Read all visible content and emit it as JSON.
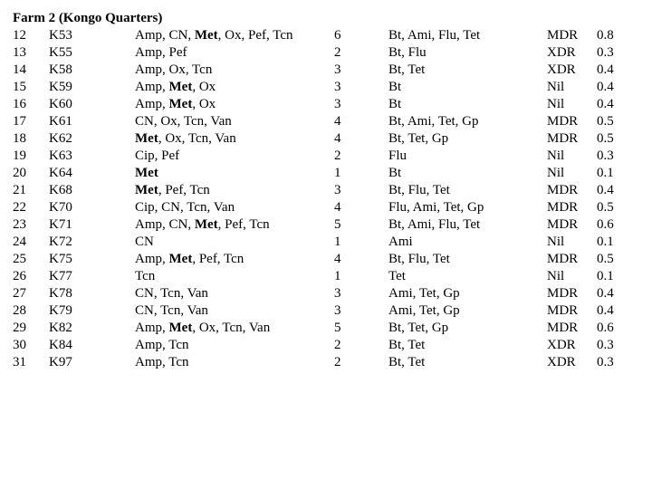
{
  "section_title": "Farm 2 (Kongo Quarters)",
  "rows": [
    {
      "n": "12",
      "code": "K53",
      "res_tokens": [
        "Amp, CN, ",
        [
          "b",
          "Met"
        ],
        ", Ox, Pef, Tcn"
      ],
      "count": "6",
      "sens": "Bt, Ami, Flu, Tet",
      "cat": "MDR",
      "idx": "0.8"
    },
    {
      "n": "13",
      "code": "K55",
      "res_tokens": [
        "Amp, Pef"
      ],
      "count": "2",
      "sens": "Bt, Flu",
      "cat": "XDR",
      "idx": "0.3"
    },
    {
      "n": "14",
      "code": "K58",
      "res_tokens": [
        "Amp, Ox, Tcn"
      ],
      "count": "3",
      "sens": "Bt, Tet",
      "cat": "XDR",
      "idx": "0.4"
    },
    {
      "n": "15",
      "code": "K59",
      "res_tokens": [
        "Amp, ",
        [
          "b",
          "Met"
        ],
        ", Ox"
      ],
      "count": "3",
      "sens": "Bt",
      "cat": "Nil",
      "idx": "0.4"
    },
    {
      "n": "16",
      "code": "K60",
      "res_tokens": [
        "Amp, ",
        [
          "b",
          "Met"
        ],
        ", Ox"
      ],
      "count": "3",
      "sens": "Bt",
      "cat": "Nil",
      "idx": "0.4"
    },
    {
      "n": "17",
      "code": "K61",
      "res_tokens": [
        "CN, Ox, Tcn, Van"
      ],
      "count": "4",
      "sens": "Bt, Ami, Tet, Gp",
      "cat": "MDR",
      "idx": "0.5"
    },
    {
      "n": "18",
      "code": "K62",
      "res_tokens": [
        [
          "b",
          "Met"
        ],
        ", Ox, Tcn, Van"
      ],
      "count": "4",
      "sens": "Bt, Tet, Gp",
      "cat": "MDR",
      "idx": "0.5"
    },
    {
      "n": "19",
      "code": "K63",
      "res_tokens": [
        "Cip, Pef"
      ],
      "count": "2",
      "sens": "Flu",
      "cat": "Nil",
      "idx": "0.3"
    },
    {
      "n": "20",
      "code": "K64",
      "res_tokens": [
        [
          "b",
          "Met"
        ]
      ],
      "count": "1",
      "sens": "Bt",
      "cat": "Nil",
      "idx": "0.1"
    },
    {
      "n": "21",
      "code": "K68",
      "res_tokens": [
        [
          "b",
          "Met"
        ],
        ", Pef, Tcn"
      ],
      "count": "3",
      "sens": "Bt, Flu, Tet",
      "cat": "MDR",
      "idx": "0.4"
    },
    {
      "n": "22",
      "code": "K70",
      "res_tokens": [
        "Cip, CN, Tcn, Van"
      ],
      "count": "4",
      "sens": "Flu, Ami, Tet, Gp",
      "cat": "MDR",
      "idx": "0.5"
    },
    {
      "n": "23",
      "code": "K71",
      "res_tokens": [
        "Amp, CN, ",
        [
          "b",
          "Met"
        ],
        ", Pef, Tcn"
      ],
      "count": "5",
      "sens": "Bt, Ami, Flu, Tet",
      "cat": "MDR",
      "idx": "0.6"
    },
    {
      "n": "24",
      "code": "K72",
      "res_tokens": [
        "CN"
      ],
      "count": "1",
      "sens": "Ami",
      "cat": "Nil",
      "idx": "0.1"
    },
    {
      "n": "25",
      "code": "K75",
      "res_tokens": [
        "Amp, ",
        [
          "b",
          "Met"
        ],
        ", Pef, Tcn"
      ],
      "count": "4",
      "sens": "Bt, Flu, Tet",
      "cat": "MDR",
      "idx": "0.5"
    },
    {
      "n": "26",
      "code": "K77",
      "res_tokens": [
        "Tcn"
      ],
      "count": "1",
      "sens": "Tet",
      "cat": "Nil",
      "idx": "0.1"
    },
    {
      "n": "27",
      "code": "K78",
      "res_tokens": [
        "CN, Tcn, Van"
      ],
      "count": "3",
      "sens": "Ami, Tet, Gp",
      "cat": "MDR",
      "idx": "0.4"
    },
    {
      "n": "28",
      "code": "K79",
      "res_tokens": [
        "CN, Tcn, Van"
      ],
      "count": "3",
      "sens": "Ami, Tet, Gp",
      "cat": "MDR",
      "idx": "0.4"
    },
    {
      "n": "29",
      "code": "K82",
      "res_tokens": [
        "Amp, ",
        [
          "b",
          "Met"
        ],
        ", Ox, Tcn, Van"
      ],
      "count": "5",
      "sens": "Bt, Tet, Gp",
      "cat": "MDR",
      "idx": "0.6"
    },
    {
      "n": "30",
      "code": "K84",
      "res_tokens": [
        "Amp, Tcn"
      ],
      "count": "2",
      "sens": "Bt, Tet",
      "cat": "XDR",
      "idx": "0.3"
    },
    {
      "n": "31",
      "code": "K97",
      "res_tokens": [
        "Amp, Tcn"
      ],
      "count": "2",
      "sens": "Bt, Tet",
      "cat": "XDR",
      "idx": "0.3"
    }
  ]
}
